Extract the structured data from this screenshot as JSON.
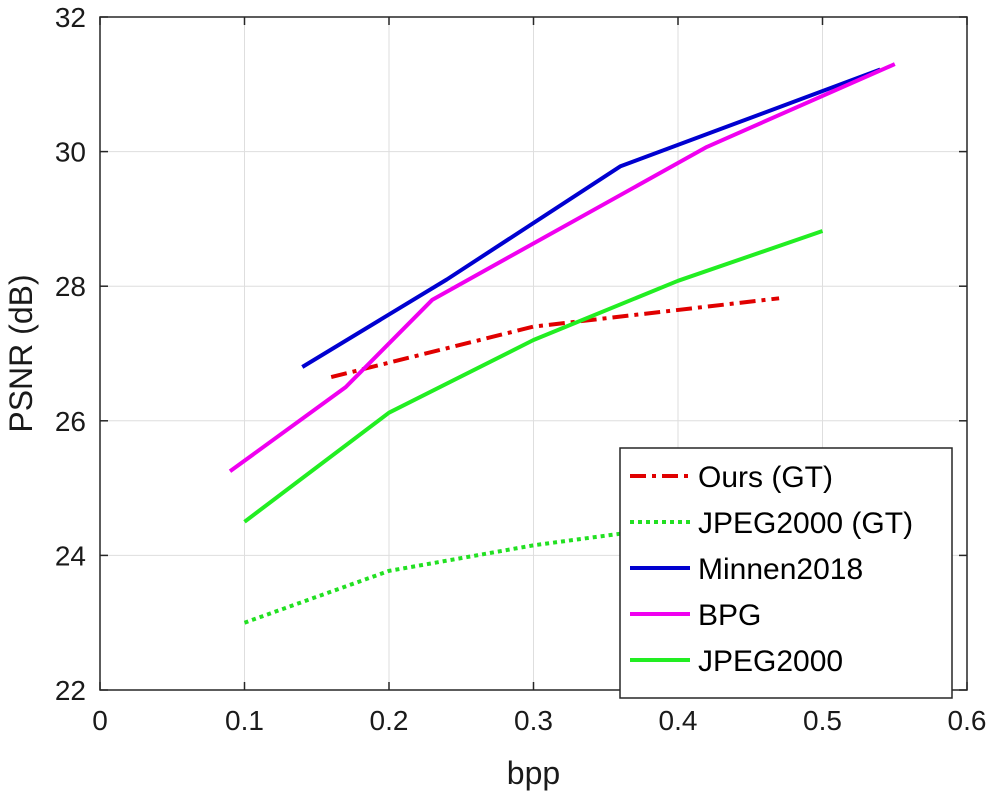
{
  "chart_data": {
    "type": "line",
    "title": "",
    "xlabel": "bpp",
    "ylabel": "PSNR (dB)",
    "xlim": [
      0,
      0.6
    ],
    "ylim": [
      22,
      32
    ],
    "xticks": [
      "0",
      "0.1",
      "0.2",
      "0.3",
      "0.4",
      "0.5",
      "0.6"
    ],
    "yticks": [
      "22",
      "24",
      "26",
      "28",
      "30",
      "32"
    ],
    "grid": true,
    "legend_position": "bottom-right",
    "series": [
      {
        "name": "Ours (GT)",
        "color": "#e00000",
        "style": "dashdot",
        "x": [
          0.16,
          0.3,
          0.47
        ],
        "y": [
          26.65,
          27.4,
          27.82
        ]
      },
      {
        "name": "JPEG2000 (GT)",
        "color": "#22e022",
        "style": "dotted",
        "x": [
          0.1,
          0.2,
          0.3,
          0.37
        ],
        "y": [
          23.0,
          23.77,
          24.15,
          24.35
        ]
      },
      {
        "name": "Minnen2018",
        "color": "#0000d0",
        "style": "solid",
        "x": [
          0.14,
          0.24,
          0.36,
          0.54
        ],
        "y": [
          26.8,
          28.1,
          29.78,
          31.22
        ]
      },
      {
        "name": "BPG",
        "color": "#f000f0",
        "style": "solid",
        "x": [
          0.09,
          0.17,
          0.23,
          0.42,
          0.55
        ],
        "y": [
          25.25,
          26.5,
          27.8,
          30.07,
          31.3
        ]
      },
      {
        "name": "JPEG2000",
        "color": "#22ee22",
        "style": "solid",
        "x": [
          0.1,
          0.2,
          0.3,
          0.4,
          0.5
        ],
        "y": [
          24.5,
          26.12,
          27.2,
          28.08,
          28.82
        ]
      }
    ]
  }
}
